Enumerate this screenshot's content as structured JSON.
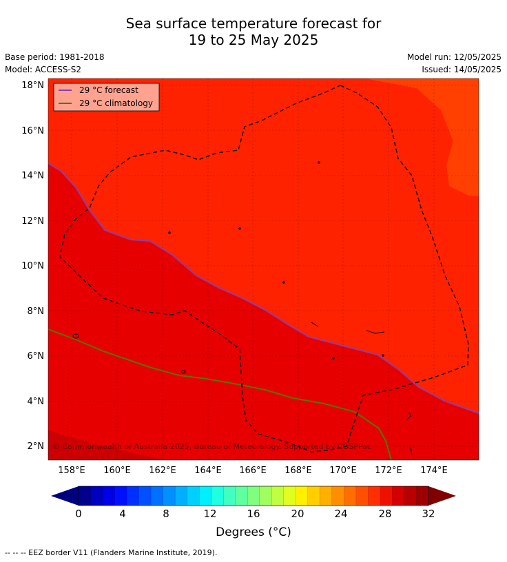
{
  "title": {
    "line1": "Sea surface temperature forecast for",
    "line2": "19 to 25 May 2025"
  },
  "meta": {
    "base_period": "Base period: 1981-2018",
    "model": "Model: ACCESS-S2",
    "model_run": "Model run: 12/05/2025",
    "issued": "Issued: 14/05/2025"
  },
  "map": {
    "lat_ticks": [
      "18°N",
      "16°N",
      "14°N",
      "12°N",
      "10°N",
      "8°N",
      "6°N",
      "4°N",
      "2°N"
    ],
    "lon_ticks": [
      "158°E",
      "160°E",
      "162°E",
      "164°E",
      "166°E",
      "168°E",
      "170°E",
      "172°E",
      "174°E"
    ],
    "copyright": "© Commonwealth of Australia 2025, Bureau of Meteorology. Supported by COSPPac",
    "legend": {
      "forecast": "29 °C  forecast",
      "climatology": "29 °C  climatology"
    },
    "colors": {
      "warm": "#ff2200",
      "hot": "#e60000",
      "hottest": "#cc0000",
      "top_right": "#ff4000",
      "forecast_line": "#8a3fa8",
      "climatology_line": "#4d7a00"
    }
  },
  "colorbar": {
    "tick_labels": [
      "0",
      "4",
      "8",
      "12",
      "16",
      "20",
      "24",
      "28",
      "32"
    ],
    "label": "Degrees (°C)",
    "colors": [
      "#00008f",
      "#0000bf",
      "#0000e8",
      "#0010ff",
      "#0030ff",
      "#0050ff",
      "#0070ff",
      "#0090ff",
      "#00b0ff",
      "#00d0ff",
      "#00f0ff",
      "#20ffdf",
      "#40ffbf",
      "#60ff9f",
      "#80ff7f",
      "#a0ff5f",
      "#c0ff3f",
      "#e0ff1f",
      "#ffef00",
      "#ffcf00",
      "#ffaf00",
      "#ff8f00",
      "#ff6f00",
      "#ff4f00",
      "#ff2f00",
      "#f01000",
      "#d40000",
      "#b80000",
      "#9c0000"
    ],
    "under_color": "#00007f",
    "over_color": "#800000"
  },
  "footnote": "--  --  -- EEZ border V11 (Flanders Marine Institute, 2019)."
}
